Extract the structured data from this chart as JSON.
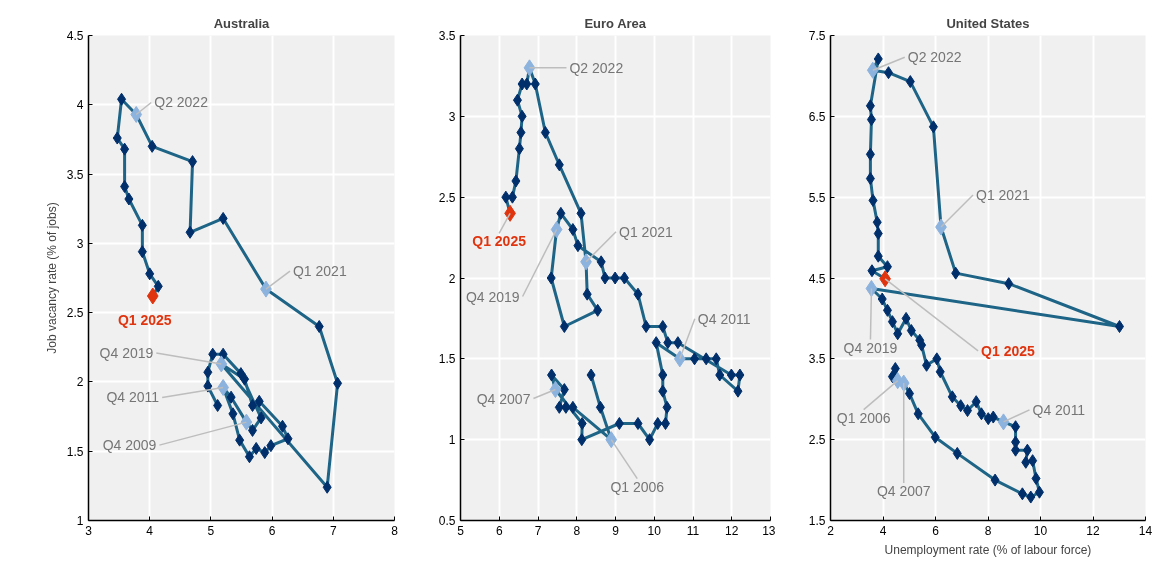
{
  "chart_data": [
    {
      "type": "line",
      "title": "Australia",
      "ylabel": "Job vacancy rate (% of jobs)",
      "xlim": [
        3,
        8
      ],
      "ylim": [
        1,
        4.5
      ],
      "xticks": [
        3,
        4,
        5,
        6,
        7,
        8
      ],
      "yticks": [
        1,
        1.5,
        2,
        2.5,
        3,
        3.5,
        4,
        4.5
      ],
      "grid": true,
      "series": [
        {
          "color": "#1d6486",
          "x": [
            5.11,
            4.95,
            4.95,
            5.03,
            5.2,
            5.49,
            5.82,
            5.68,
            5.58,
            5.33,
            5.2,
            5.36,
            5.47,
            5.63,
            5.74,
            5.88,
            5.98,
            6.26,
            6.17,
            5.79,
            5.68,
            5.55,
            5.17,
            6.9,
            7.07,
            6.77,
            5.9,
            5.2,
            4.66,
            4.7,
            4.04,
            3.78,
            3.54,
            3.47,
            3.59,
            3.59,
            3.66,
            3.88,
            3.88,
            4.0,
            4.14,
            4.05
          ],
          "values": [
            1.83,
            1.97,
            2.07,
            2.2,
            2.2,
            2.06,
            1.74,
            1.65,
            1.71,
            1.89,
            1.96,
            1.77,
            1.58,
            1.46,
            1.52,
            1.49,
            1.54,
            1.59,
            1.68,
            1.86,
            1.83,
            2.02,
            2.13,
            1.24,
            1.99,
            2.4,
            2.67,
            3.18,
            3.08,
            3.59,
            3.7,
            3.93,
            4.04,
            3.76,
            3.68,
            3.41,
            3.32,
            3.13,
            2.94,
            2.78,
            2.69,
            2.62
          ]
        },
        {
          "type": "scatter",
          "marker": "diamond",
          "color": "#002f6c",
          "x": [
            5.11,
            4.95,
            4.95,
            5.03,
            5.2,
            5.49,
            5.82,
            5.68,
            5.33,
            5.36,
            5.47,
            5.63,
            5.74,
            5.88,
            5.98,
            6.26,
            6.17,
            5.79,
            5.68,
            5.55,
            6.9,
            7.07,
            6.77,
            5.2,
            4.66,
            4.7,
            4.04,
            3.54,
            3.47,
            3.59,
            3.59,
            3.66,
            3.88,
            3.88,
            4.0,
            4.14
          ],
          "values": [
            1.83,
            1.97,
            2.07,
            2.2,
            2.2,
            2.06,
            1.74,
            1.65,
            1.89,
            1.77,
            1.58,
            1.46,
            1.52,
            1.49,
            1.54,
            1.59,
            1.68,
            1.86,
            1.83,
            2.02,
            1.24,
            1.99,
            2.4,
            3.18,
            3.08,
            3.59,
            3.7,
            4.04,
            3.76,
            3.68,
            3.41,
            3.32,
            3.13,
            2.94,
            2.78,
            2.69
          ]
        },
        {
          "type": "scatter",
          "marker": "diamond",
          "colors": [
            "#8cb2de",
            "#8cb2de",
            "#8cb2de",
            "#8cb2de",
            "#8cb2de",
            "#e0340f"
          ],
          "x": [
            5.58,
            5.2,
            5.17,
            5.9,
            3.78,
            4.05
          ],
          "values": [
            1.71,
            1.96,
            2.13,
            2.67,
            3.93,
            2.62
          ]
        }
      ],
      "annotations": [
        {
          "text": "Q4 2009",
          "x": 5.58,
          "y": 1.71
        },
        {
          "text": "Q4 2011",
          "x": 5.2,
          "y": 1.96
        },
        {
          "text": "Q4 2019",
          "x": 5.17,
          "y": 2.13
        },
        {
          "text": "Q1 2021",
          "x": 5.9,
          "y": 2.67
        },
        {
          "text": "Q2 2022",
          "x": 3.78,
          "y": 3.93
        },
        {
          "text": "Q1 2025",
          "x": 4.05,
          "y": 2.62
        }
      ]
    },
    {
      "type": "line",
      "title": "Euro Area",
      "xlim": [
        5,
        13
      ],
      "ylim": [
        0.5,
        3.5
      ],
      "xticks": [
        5,
        6,
        7,
        8,
        9,
        10,
        11,
        12,
        13
      ],
      "yticks": [
        0.5,
        1,
        1.5,
        2,
        2.5,
        3,
        3.5
      ],
      "grid": true,
      "series": [
        {
          "color": "#1d6486",
          "x": [
            8.37,
            8.61,
            8.89,
            7.9,
            7.72,
            7.55,
            7.68,
            7.35,
            7.45,
            8.14,
            8.13,
            9.1,
            9.58,
            9.88,
            10.09,
            10.29,
            10.33,
            10.22,
            10.22,
            10.05,
            10.66,
            11.04,
            11.34,
            11.6,
            11.69,
            12.16,
            12.21,
            11.99,
            10.61,
            10.35,
            10.22,
            9.79,
            9.58,
            9.23,
            8.99,
            8.73,
            8.63,
            8.03,
            7.9,
            7.59,
            7.48,
            7.34,
            7.68,
            8.54,
            8.27,
            8.24,
            8.11,
            7.55,
            7.19,
            6.93,
            6.78,
            6.71,
            6.59,
            6.47,
            6.59,
            6.56,
            6.52,
            6.43,
            6.34,
            6.17,
            6.28
          ],
          "values": [
            1.4,
            1.2,
            1.0,
            1.2,
            1.2,
            1.2,
            1.31,
            1.4,
            1.31,
            1.1,
            1.0,
            1.1,
            1.1,
            1.0,
            1.1,
            1.1,
            1.2,
            1.3,
            1.4,
            1.6,
            1.5,
            1.5,
            1.5,
            1.5,
            1.4,
            1.3,
            1.4,
            1.4,
            1.6,
            1.6,
            1.7,
            1.7,
            1.9,
            2.0,
            2.0,
            2.0,
            2.1,
            2.2,
            2.3,
            2.4,
            2.3,
            2.0,
            1.7,
            1.8,
            1.9,
            2.1,
            2.4,
            2.7,
            2.9,
            3.2,
            3.3,
            3.2,
            3.2,
            3.1,
            3.0,
            2.9,
            2.8,
            2.6,
            2.5,
            2.5,
            2.4
          ]
        },
        {
          "type": "scatter",
          "marker": "diamond",
          "color": "#002f6c",
          "x": [
            8.37,
            8.61,
            7.9,
            7.72,
            7.55,
            7.68,
            7.35,
            8.14,
            8.13,
            9.1,
            9.58,
            9.88,
            10.09,
            10.29,
            10.33,
            10.22,
            10.22,
            10.05,
            11.04,
            11.34,
            11.6,
            11.69,
            12.16,
            12.21,
            11.99,
            10.61,
            10.35,
            10.22,
            9.79,
            9.58,
            9.23,
            8.99,
            8.73,
            8.63,
            8.03,
            7.9,
            7.59,
            7.34,
            7.68,
            8.54,
            8.27,
            8.11,
            7.55,
            7.19,
            6.93,
            6.71,
            6.59,
            6.47,
            6.59,
            6.56,
            6.52,
            6.43,
            6.34,
            6.17
          ],
          "values": [
            1.4,
            1.2,
            1.2,
            1.2,
            1.2,
            1.31,
            1.4,
            1.1,
            1.0,
            1.1,
            1.1,
            1.0,
            1.1,
            1.1,
            1.2,
            1.3,
            1.4,
            1.6,
            1.5,
            1.5,
            1.5,
            1.4,
            1.3,
            1.4,
            1.4,
            1.6,
            1.6,
            1.7,
            1.7,
            1.9,
            2.0,
            2.0,
            2.0,
            2.1,
            2.2,
            2.3,
            2.4,
            2.0,
            1.7,
            1.8,
            1.9,
            2.4,
            2.7,
            2.9,
            3.2,
            3.2,
            3.2,
            3.1,
            3.0,
            2.9,
            2.8,
            2.6,
            2.5,
            2.5
          ]
        },
        {
          "type": "scatter",
          "marker": "diamond",
          "colors": [
            "#8cb2de",
            "#8cb2de",
            "#8cb2de",
            "#8cb2de",
            "#8cb2de",
            "#8cb2de",
            "#e0340f"
          ],
          "x": [
            8.89,
            7.45,
            10.66,
            7.48,
            8.24,
            6.78,
            6.28
          ],
          "values": [
            1.0,
            1.31,
            1.5,
            2.3,
            2.1,
            3.3,
            2.4
          ]
        }
      ],
      "annotations": [
        {
          "text": "Q1 2006",
          "x": 8.89,
          "y": 1.0
        },
        {
          "text": "Q4 2007",
          "x": 7.45,
          "y": 1.31
        },
        {
          "text": "Q4 2011",
          "x": 10.66,
          "y": 1.5
        },
        {
          "text": "Q4 2019",
          "x": 7.48,
          "y": 2.3
        },
        {
          "text": "Q1 2021",
          "x": 8.24,
          "y": 2.1
        },
        {
          "text": "Q2 2022",
          "x": 6.78,
          "y": 3.3
        },
        {
          "text": "Q1 2025",
          "x": 6.28,
          "y": 2.4
        }
      ]
    },
    {
      "type": "line",
      "title": "United States",
      "xlabel": "Unemployment rate (% of labour force)",
      "xlim": [
        2,
        14
      ],
      "ylim": [
        1.5,
        7.5
      ],
      "xticks": [
        2,
        4,
        6,
        8,
        10,
        12,
        14
      ],
      "yticks": [
        1.5,
        2.5,
        3.5,
        4.5,
        5.5,
        6.5,
        7.5
      ],
      "grid": true,
      "series": [
        {
          "color": "#1d6486",
          "x": [
            4.56,
            4.47,
            4.36,
            4.79,
            5.01,
            5.34,
            5.99,
            6.83,
            8.27,
            9.31,
            9.63,
            9.96,
            9.83,
            9.7,
            9.44,
            9.5,
            9.05,
            9.05,
            9.05,
            8.59,
            8.2,
            8.01,
            7.75,
            7.55,
            7.22,
            6.96,
            6.64,
            6.18,
            6.05,
            5.66,
            5.47,
            5.4,
            5.08,
            4.88,
            4.56,
            4.36,
            4.17,
            3.97,
            3.56,
            13.01,
            8.79,
            6.77,
            6.21,
            5.92,
            5.04,
            4.21,
            3.61,
            3.82,
            3.52,
            3.56,
            3.52,
            3.52,
            3.62,
            3.78,
            3.82,
            3.82,
            4.17,
            3.58,
            4.08
          ],
          "values": [
            3.23,
            3.38,
            3.28,
            3.2,
            3.07,
            2.82,
            2.53,
            2.33,
            2.0,
            1.83,
            1.79,
            1.85,
            2.02,
            2.24,
            2.22,
            2.37,
            2.37,
            2.47,
            2.66,
            2.72,
            2.78,
            2.76,
            2.82,
            2.97,
            2.86,
            2.92,
            3.03,
            3.34,
            3.5,
            3.42,
            3.67,
            3.73,
            3.85,
            4.0,
            3.81,
            3.96,
            4.1,
            4.24,
            4.37,
            3.9,
            4.43,
            4.56,
            5.13,
            6.37,
            6.93,
            7.04,
            7.07,
            7.21,
            6.63,
            6.46,
            6.03,
            5.73,
            5.46,
            5.19,
            5.05,
            4.77,
            4.64,
            4.59,
            4.49
          ]
        },
        {
          "type": "scatter",
          "marker": "diamond",
          "color": "#002f6c",
          "x": [
            4.47,
            4.36,
            5.01,
            5.34,
            5.99,
            6.83,
            8.27,
            9.31,
            9.63,
            9.96,
            9.83,
            9.7,
            9.44,
            9.5,
            9.05,
            9.05,
            9.05,
            8.2,
            8.01,
            7.75,
            7.55,
            7.22,
            6.96,
            6.64,
            6.18,
            6.05,
            5.66,
            5.47,
            5.4,
            5.08,
            4.88,
            4.56,
            4.36,
            4.17,
            3.97,
            13.01,
            8.79,
            6.77,
            5.92,
            5.04,
            4.21,
            3.82,
            3.52,
            3.56,
            3.52,
            3.52,
            3.62,
            3.78,
            3.82,
            3.82,
            4.17,
            3.58
          ],
          "values": [
            3.38,
            3.28,
            3.07,
            2.82,
            2.53,
            2.33,
            2.0,
            1.83,
            1.79,
            1.85,
            2.02,
            2.24,
            2.22,
            2.37,
            2.37,
            2.47,
            2.66,
            2.78,
            2.76,
            2.82,
            2.97,
            2.86,
            2.92,
            3.03,
            3.34,
            3.5,
            3.42,
            3.67,
            3.73,
            3.85,
            4.0,
            3.81,
            3.96,
            4.1,
            4.24,
            3.9,
            4.43,
            4.56,
            6.37,
            6.93,
            7.04,
            7.21,
            6.63,
            6.46,
            6.03,
            5.73,
            5.46,
            5.19,
            5.05,
            4.77,
            4.64,
            4.59
          ]
        },
        {
          "type": "scatter",
          "marker": "diamond",
          "colors": [
            "#8cb2de",
            "#8cb2de",
            "#8cb2de",
            "#8cb2de",
            "#8cb2de",
            "#8cb2de",
            "#e0340f"
          ],
          "x": [
            4.56,
            4.79,
            8.59,
            3.56,
            6.21,
            3.61,
            4.08
          ],
          "values": [
            3.23,
            3.2,
            2.72,
            4.37,
            5.13,
            7.07,
            4.49
          ]
        }
      ],
      "annotations": [
        {
          "text": "Q1 2006",
          "x": 4.56,
          "y": 3.23
        },
        {
          "text": "Q4 2007",
          "x": 4.79,
          "y": 3.2
        },
        {
          "text": "Q4 2011",
          "x": 8.59,
          "y": 2.72
        },
        {
          "text": "Q4 2019",
          "x": 3.56,
          "y": 4.37
        },
        {
          "text": "Q1 2021",
          "x": 6.21,
          "y": 5.13
        },
        {
          "text": "Q2 2022",
          "x": 3.61,
          "y": 7.07
        },
        {
          "text": "Q1 2025",
          "x": 4.08,
          "y": 4.49
        }
      ]
    }
  ]
}
